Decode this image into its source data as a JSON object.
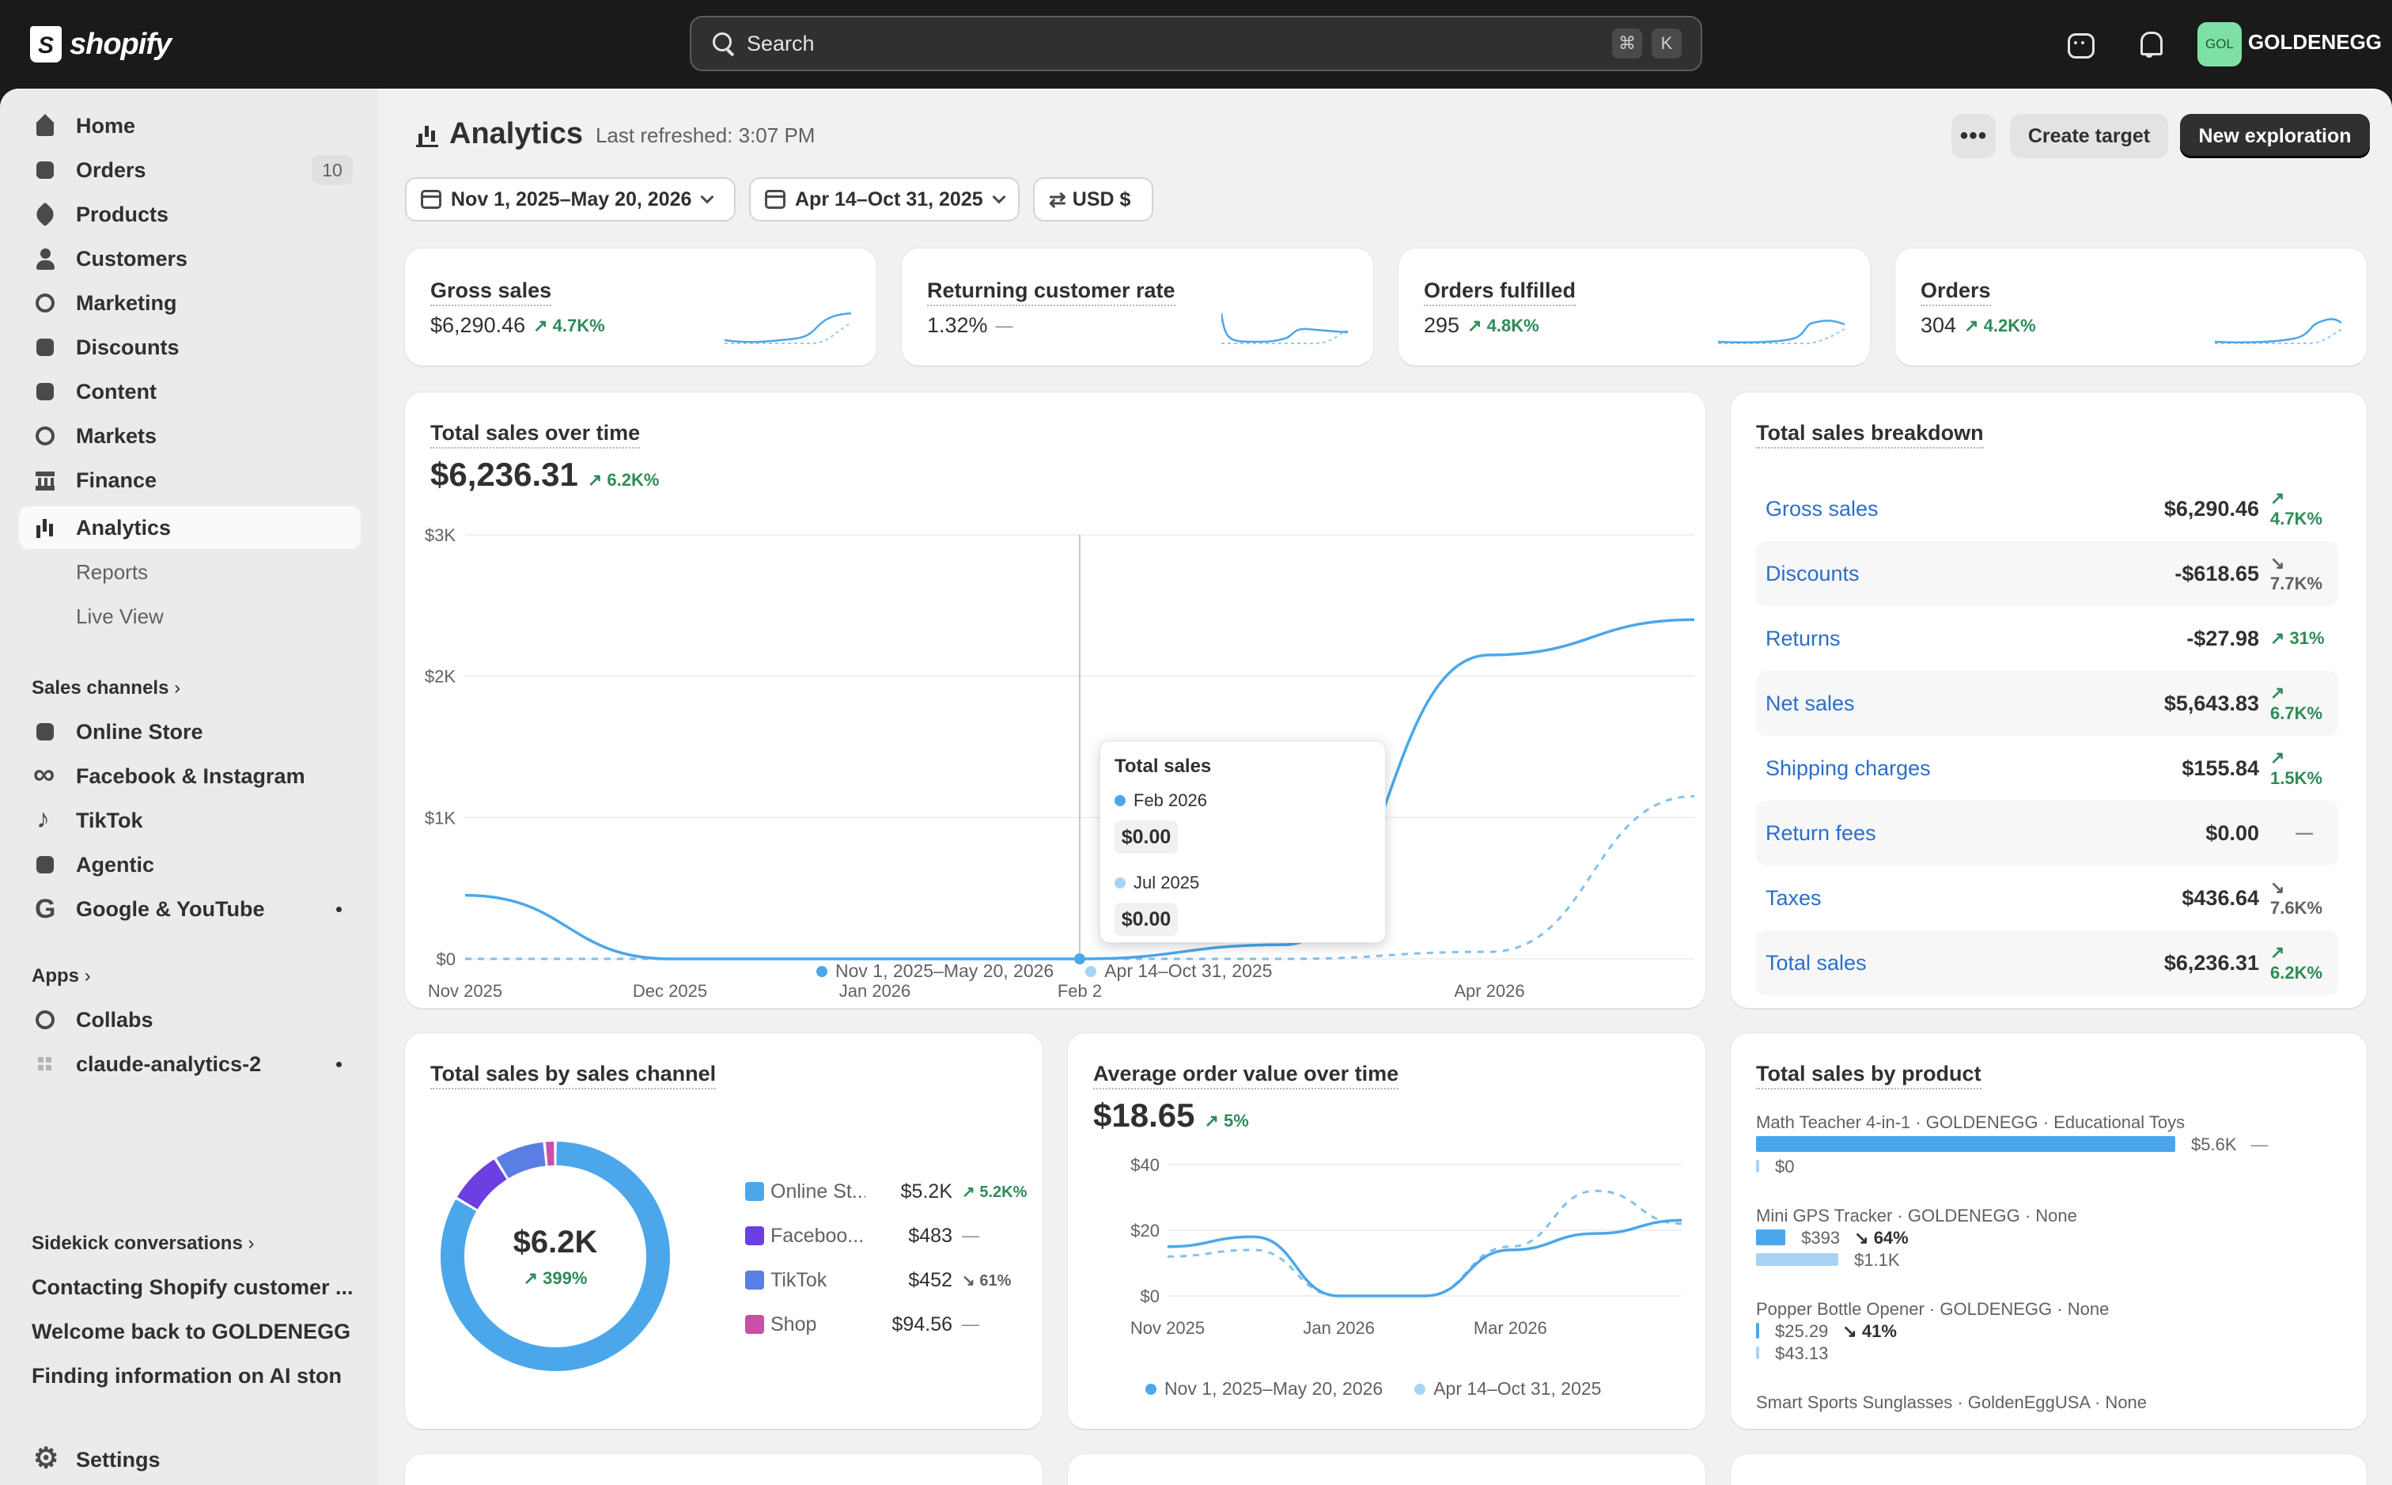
{
  "topbar": {
    "logo_text": "shopify",
    "search_placeholder": "Search",
    "shortcut_cmd": "⌘",
    "shortcut_key": "K",
    "avatar_initials": "GOL",
    "store_name": "GOLDENEGG"
  },
  "sidebar": {
    "items": [
      {
        "label": "Home",
        "icon": "home-icon"
      },
      {
        "label": "Orders",
        "icon": "orders-icon",
        "badge": "10"
      },
      {
        "label": "Products",
        "icon": "tag-icon"
      },
      {
        "label": "Customers",
        "icon": "person-icon"
      },
      {
        "label": "Marketing",
        "icon": "target-icon"
      },
      {
        "label": "Discounts",
        "icon": "discount-icon"
      },
      {
        "label": "Content",
        "icon": "content-icon"
      },
      {
        "label": "Markets",
        "icon": "globe-icon"
      },
      {
        "label": "Finance",
        "icon": "bank-icon"
      },
      {
        "label": "Analytics",
        "icon": "bar-chart-icon"
      }
    ],
    "analytics_sub": [
      "Reports",
      "Live View"
    ],
    "sales_channels_header": "Sales channels",
    "channels": [
      "Online Store",
      "Facebook & Instagram",
      "TikTok",
      "Agentic",
      "Google & YouTube"
    ],
    "apps_header": "Apps",
    "apps": [
      "Collabs",
      "claude-analytics-2"
    ],
    "sidekick_header": "Sidekick conversations",
    "conversations": [
      "Contacting Shopify customer ...",
      "Welcome back to GOLDENEGG",
      "Finding information on AI ston"
    ],
    "settings_label": "Settings"
  },
  "header": {
    "title": "Analytics",
    "last_refreshed": "Last refreshed: 3:07 PM",
    "more_label": "•••",
    "create_target_label": "Create target",
    "new_exploration_label": "New exploration",
    "date_range": "Nov 1, 2025–May 20, 2026",
    "compare_range": "Apr 14–Oct 31, 2025",
    "currency": "USD $"
  },
  "kpis": [
    {
      "label": "Gross sales",
      "value": "$6,290.46",
      "change": "4.7K%",
      "trend": "up"
    },
    {
      "label": "Returning customer rate",
      "value": "1.32%",
      "change": "—",
      "trend": "flat"
    },
    {
      "label": "Orders fulfilled",
      "value": "295",
      "change": "4.8K%",
      "trend": "up"
    },
    {
      "label": "Orders",
      "value": "304",
      "change": "4.2K%",
      "trend": "up"
    }
  ],
  "total_sales_over_time": {
    "title": "Total sales over time",
    "value": "$6,236.31",
    "change": "6.2K%",
    "y_ticks": [
      "$3K",
      "$2K",
      "$1K",
      "$0"
    ],
    "x_ticks": [
      "Nov 2025",
      "Dec 2025",
      "Jan 2026",
      "Feb 2",
      "Apr 2026"
    ],
    "legend_current": "Nov 1, 2025–May 20, 2026",
    "legend_previous": "Apr 14–Oct 31, 2025",
    "tooltip": {
      "title": "Total sales",
      "current_label": "Feb 2026",
      "current_value": "$0.00",
      "previous_label": "Jul 2025",
      "previous_value": "$0.00"
    }
  },
  "breakdown": {
    "title": "Total sales breakdown",
    "rows": [
      {
        "label": "Gross sales",
        "value": "$6,290.46",
        "change": "4.7K%",
        "trend": "up"
      },
      {
        "label": "Discounts",
        "value": "-$618.65",
        "change": "7.7K%",
        "trend": "down"
      },
      {
        "label": "Returns",
        "value": "-$27.98",
        "change": "31%",
        "trend": "up"
      },
      {
        "label": "Net sales",
        "value": "$5,643.83",
        "change": "6.7K%",
        "trend": "up"
      },
      {
        "label": "Shipping charges",
        "value": "$155.84",
        "change": "1.5K%",
        "trend": "up"
      },
      {
        "label": "Return fees",
        "value": "$0.00",
        "change": "—",
        "trend": "flat"
      },
      {
        "label": "Taxes",
        "value": "$436.64",
        "change": "7.6K%",
        "trend": "down"
      },
      {
        "label": "Total sales",
        "value": "$6,236.31",
        "change": "6.2K%",
        "trend": "up"
      }
    ]
  },
  "by_channel": {
    "title": "Total sales by sales channel",
    "center_value": "$6.2K",
    "center_change": "399%",
    "channels": [
      {
        "name": "Online St...",
        "value": "$5.2K",
        "change": "5.2K%",
        "trend": "up",
        "color": "#4ba7ea"
      },
      {
        "name": "Faceboo...",
        "value": "$483",
        "change": "—",
        "trend": "flat",
        "color": "#6b3fe0"
      },
      {
        "name": "TikTok",
        "value": "$452",
        "change": "61%",
        "trend": "down",
        "color": "#5b7ee5"
      },
      {
        "name": "Shop",
        "value": "$94.56",
        "change": "—",
        "trend": "flat",
        "color": "#c94fa8"
      }
    ]
  },
  "aov": {
    "title": "Average order value over time",
    "value": "$18.65",
    "change": "5%",
    "y_ticks": [
      "$40",
      "$20",
      "$0"
    ],
    "x_ticks": [
      "Nov 2025",
      "Jan 2026",
      "Mar 2026"
    ],
    "legend_current": "Nov 1, 2025–May 20, 2026",
    "legend_previous": "Apr 14–Oct 31, 2025"
  },
  "by_product": {
    "title": "Total sales by product",
    "products": [
      {
        "name": "Math Teacher 4-in-1 · GOLDENEGG · Educational Toys",
        "current": "$5.6K",
        "change": "—",
        "previous": "$0"
      },
      {
        "name": "Mini GPS Tracker · GOLDENEGG · None",
        "current": "$393",
        "change": "64%",
        "previous": "$1.1K"
      },
      {
        "name": "Popper Bottle Opener · GOLDENEGG · None",
        "current": "$25.29",
        "change": "41%",
        "previous": "$43.13"
      },
      {
        "name": "Smart Sports Sunglasses · GoldenEggUSA · None"
      }
    ]
  },
  "colors": {
    "accent": "#4ba7ea",
    "accent_light": "#a8d3f5",
    "positive": "#2e8b57"
  },
  "chart_data": [
    {
      "type": "line",
      "title": "Total sales over time",
      "x": [
        "Nov 2025",
        "Dec 2025",
        "Jan 2026",
        "Feb 2026",
        "Mar 2026",
        "Apr 2026",
        "May 2026"
      ],
      "series": [
        {
          "name": "Nov 1, 2025–May 20, 2026",
          "values": [
            450,
            0,
            0,
            0,
            100,
            2150,
            2400
          ]
        },
        {
          "name": "Apr 14–Oct 31, 2025",
          "values": [
            0,
            0,
            0,
            0,
            0,
            50,
            1150
          ]
        }
      ],
      "ylim": [
        0,
        3000
      ]
    },
    {
      "type": "pie",
      "title": "Total sales by sales channel",
      "categories": [
        "Online St...",
        "Faceboo...",
        "TikTok",
        "Shop"
      ],
      "values": [
        5200,
        483,
        452,
        94.56
      ]
    },
    {
      "type": "line",
      "title": "Average order value over time",
      "x": [
        "Nov 2025",
        "Dec 2025",
        "Jan 2026",
        "Feb 2026",
        "Mar 2026",
        "Apr 2026",
        "May 2026"
      ],
      "series": [
        {
          "name": "Nov 1, 2025–May 20, 2026",
          "values": [
            15,
            18,
            0,
            0,
            14,
            19,
            23
          ]
        },
        {
          "name": "Apr 14–Oct 31, 2025",
          "values": [
            12,
            14,
            0,
            0,
            15,
            32,
            22
          ]
        }
      ],
      "ylim": [
        0,
        40
      ]
    },
    {
      "type": "bar",
      "title": "Total sales by product",
      "categories": [
        "Math Teacher 4-in-1",
        "Mini GPS Tracker",
        "Popper Bottle Opener"
      ],
      "series": [
        {
          "name": "current",
          "values": [
            5600,
            393,
            25.29
          ]
        },
        {
          "name": "previous",
          "values": [
            0,
            1100,
            43.13
          ]
        }
      ]
    }
  ]
}
